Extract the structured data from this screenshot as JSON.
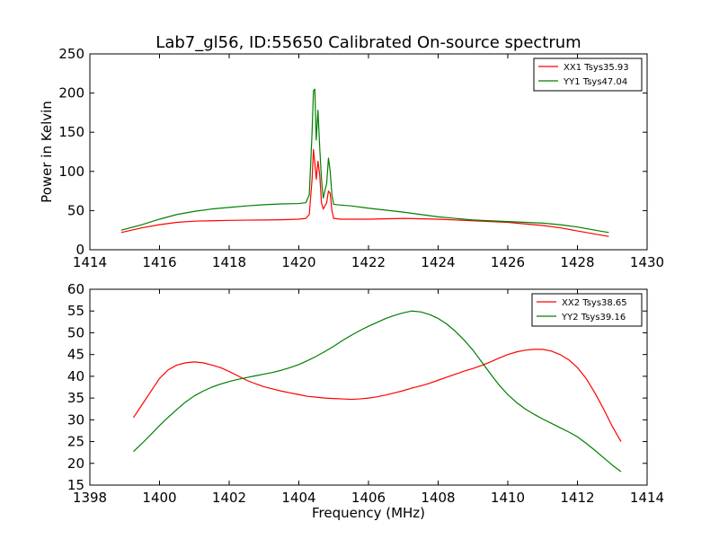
{
  "title": "Lab7_gl56, ID:55650 Calibrated On-source spectrum",
  "chart_data": [
    {
      "type": "line",
      "title": "Lab7_gl56, ID:55650 Calibrated On-source spectrum",
      "xlabel": "",
      "ylabel": "Power in Kelvin",
      "xlim": [
        1414,
        1430
      ],
      "ylim": [
        0,
        250
      ],
      "xticks": [
        1414,
        1416,
        1418,
        1420,
        1422,
        1424,
        1426,
        1428,
        1430
      ],
      "yticks": [
        0,
        50,
        100,
        150,
        200,
        250
      ],
      "grid": false,
      "legend": "top-right",
      "series": [
        {
          "name": "XX1 Tsys35.93",
          "color": "#ff0000",
          "x": [
            1414.9,
            1415.5,
            1416.0,
            1416.5,
            1417.0,
            1417.5,
            1418.0,
            1418.5,
            1419.0,
            1419.5,
            1420.0,
            1420.2,
            1420.3,
            1420.38,
            1420.42,
            1420.46,
            1420.5,
            1420.55,
            1420.6,
            1420.65,
            1420.7,
            1420.8,
            1420.85,
            1420.9,
            1420.95,
            1421.0,
            1421.2,
            1421.5,
            1422.0,
            1423.0,
            1424.0,
            1425.0,
            1426.0,
            1427.0,
            1427.5,
            1428.0,
            1428.5,
            1428.9
          ],
          "y": [
            22,
            28,
            32,
            35,
            36.5,
            37,
            37.5,
            37.8,
            38,
            38.3,
            39,
            40,
            45,
            90,
            128,
            110,
            90,
            113,
            95,
            60,
            52,
            60,
            75,
            72,
            50,
            40,
            39,
            39,
            39,
            40,
            39,
            37,
            35,
            31,
            28,
            24,
            20,
            17
          ]
        },
        {
          "name": "YY1 Tsys47.04",
          "color": "#008000",
          "x": [
            1414.9,
            1415.5,
            1416.0,
            1416.5,
            1417.0,
            1417.5,
            1418.0,
            1418.5,
            1419.0,
            1419.5,
            1420.0,
            1420.2,
            1420.3,
            1420.38,
            1420.42,
            1420.46,
            1420.5,
            1420.55,
            1420.6,
            1420.65,
            1420.7,
            1420.8,
            1420.85,
            1420.9,
            1420.95,
            1421.0,
            1421.2,
            1421.5,
            1422.0,
            1423.0,
            1424.0,
            1425.0,
            1426.0,
            1427.0,
            1427.5,
            1428.0,
            1428.5,
            1428.9
          ],
          "y": [
            25,
            32,
            39,
            45,
            49,
            52,
            54,
            56,
            57.5,
            58.5,
            59,
            60,
            70,
            150,
            203,
            205,
            140,
            178,
            130,
            90,
            66,
            85,
            117,
            100,
            70,
            58,
            57,
            56,
            53,
            48,
            42,
            38,
            36,
            34,
            32,
            29,
            25,
            22
          ]
        }
      ]
    },
    {
      "type": "line",
      "title": "",
      "xlabel": "Frequency (MHz)",
      "ylabel": "",
      "xlim": [
        1398,
        1414
      ],
      "ylim": [
        15,
        60
      ],
      "xticks": [
        1398,
        1400,
        1402,
        1404,
        1406,
        1408,
        1410,
        1412,
        1414
      ],
      "yticks": [
        15,
        20,
        25,
        30,
        35,
        40,
        45,
        50,
        55,
        60
      ],
      "grid": false,
      "legend": "top-right",
      "series": [
        {
          "name": "XX2 Tsys38.65",
          "color": "#ff0000",
          "x": [
            1399.25,
            1399.5,
            1399.75,
            1400.0,
            1400.25,
            1400.5,
            1400.75,
            1401.0,
            1401.25,
            1401.5,
            1401.75,
            1402.0,
            1402.25,
            1402.5,
            1402.75,
            1403.0,
            1403.25,
            1403.5,
            1403.75,
            1404.0,
            1404.25,
            1404.5,
            1404.75,
            1405.0,
            1405.25,
            1405.5,
            1405.75,
            1406.0,
            1406.25,
            1406.5,
            1406.75,
            1407.0,
            1407.25,
            1407.5,
            1407.75,
            1408.0,
            1408.25,
            1408.5,
            1408.75,
            1409.0,
            1409.25,
            1409.5,
            1409.75,
            1410.0,
            1410.25,
            1410.5,
            1410.75,
            1411.0,
            1411.25,
            1411.5,
            1411.75,
            1412.0,
            1412.25,
            1412.5,
            1412.75,
            1413.0,
            1413.25
          ],
          "y": [
            30.5,
            33.5,
            36.5,
            39.5,
            41.5,
            42.6,
            43.1,
            43.3,
            43.1,
            42.6,
            42.0,
            41.1,
            40.1,
            39.1,
            38.3,
            37.6,
            37.1,
            36.6,
            36.2,
            35.8,
            35.4,
            35.2,
            35.0,
            34.9,
            34.8,
            34.7,
            34.8,
            35.0,
            35.3,
            35.7,
            36.2,
            36.7,
            37.3,
            37.8,
            38.4,
            39.1,
            39.8,
            40.5,
            41.2,
            41.8,
            42.5,
            43.3,
            44.2,
            45.0,
            45.6,
            46.0,
            46.2,
            46.2,
            45.8,
            45.0,
            43.8,
            42.0,
            39.5,
            36.2,
            32.5,
            28.5,
            25.0
          ]
        },
        {
          "name": "YY2 Tsys39.16",
          "color": "#008000",
          "x": [
            1399.25,
            1399.5,
            1399.75,
            1400.0,
            1400.25,
            1400.5,
            1400.75,
            1401.0,
            1401.25,
            1401.5,
            1401.75,
            1402.0,
            1402.25,
            1402.5,
            1402.75,
            1403.0,
            1403.25,
            1403.5,
            1403.75,
            1404.0,
            1404.25,
            1404.5,
            1404.75,
            1405.0,
            1405.25,
            1405.5,
            1405.75,
            1406.0,
            1406.25,
            1406.5,
            1406.75,
            1407.0,
            1407.25,
            1407.5,
            1407.75,
            1408.0,
            1408.25,
            1408.5,
            1408.75,
            1409.0,
            1409.25,
            1409.5,
            1409.75,
            1410.0,
            1410.25,
            1410.5,
            1410.75,
            1411.0,
            1411.25,
            1411.5,
            1411.75,
            1412.0,
            1412.25,
            1412.5,
            1412.75,
            1413.0,
            1413.25
          ],
          "y": [
            22.7,
            24.6,
            26.6,
            28.7,
            30.6,
            32.4,
            34.1,
            35.5,
            36.6,
            37.5,
            38.2,
            38.8,
            39.3,
            39.7,
            40.1,
            40.5,
            40.9,
            41.4,
            42.0,
            42.7,
            43.6,
            44.6,
            45.7,
            46.9,
            48.2,
            49.4,
            50.5,
            51.5,
            52.4,
            53.3,
            54.0,
            54.6,
            55.0,
            54.8,
            54.2,
            53.3,
            52.0,
            50.3,
            48.3,
            46.0,
            43.3,
            40.6,
            38.0,
            35.8,
            34.0,
            32.5,
            31.3,
            30.2,
            29.2,
            28.2,
            27.2,
            26.1,
            24.6,
            23.0,
            21.3,
            19.6,
            18.1
          ]
        }
      ]
    }
  ]
}
